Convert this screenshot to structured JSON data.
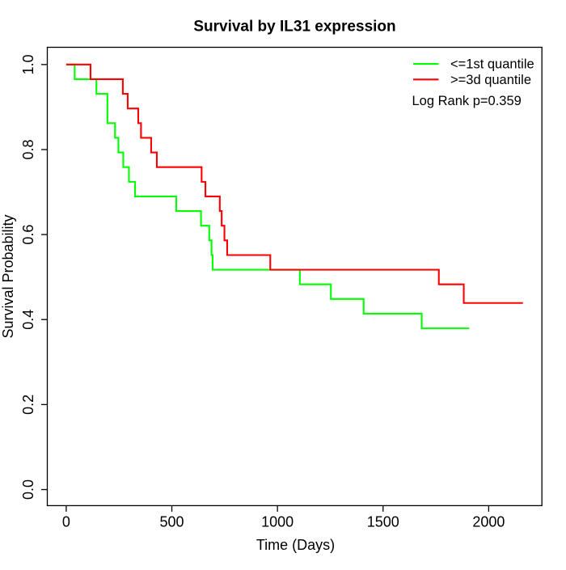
{
  "chart_data": {
    "type": "line",
    "subtype": "kaplan_meier_step",
    "title": "Survival by IL31 expression",
    "xlabel": "Time (Days)",
    "ylabel": "Survival Probability",
    "x_axis": {
      "ticks": [
        0,
        500,
        1000,
        1500,
        2000
      ],
      "tick_labels": [
        "0",
        "500",
        "1000",
        "1500",
        "2000"
      ]
    },
    "y_axis": {
      "ticks": [
        0.0,
        0.2,
        0.4,
        0.6,
        0.8,
        1.0
      ],
      "tick_labels": [
        "0.0",
        "0.2",
        "0.4",
        "0.6",
        "0.8",
        "1.0"
      ],
      "range": [
        0,
        1
      ]
    },
    "grid": false,
    "legend_position": "topright",
    "annotation": "Log Rank p=0.359",
    "colors": {
      "series_low": "#00ff00",
      "series_high": "#ff0000",
      "axis": "#000000",
      "text": "#000000",
      "background": "#ffffff"
    },
    "legend": [
      {
        "label": "<=1st quantile",
        "color": "#00ff00"
      },
      {
        "label": ">=3d quantile",
        "color": "#ff0000"
      }
    ],
    "series": [
      {
        "name": "<=1st quantile",
        "color": "#00ff00",
        "start": [
          0,
          1.0
        ],
        "steps": [
          [
            40,
            0.9655
          ],
          [
            143,
            0.931
          ],
          [
            195,
            0.8621
          ],
          [
            231,
            0.8276
          ],
          [
            247,
            0.7931
          ],
          [
            270,
            0.7586
          ],
          [
            297,
            0.7241
          ],
          [
            326,
            0.6897
          ],
          [
            521,
            0.6552
          ],
          [
            638,
            0.6207
          ],
          [
            677,
            0.5862
          ],
          [
            688,
            0.5517
          ],
          [
            693,
            0.5172
          ],
          [
            1106,
            0.4828
          ],
          [
            1253,
            0.4483
          ],
          [
            1408,
            0.4138
          ],
          [
            1683,
            0.3793
          ]
        ],
        "end_time": 1908
      },
      {
        "name": ">=3d quantile",
        "color": "#ff0000",
        "start": [
          0,
          1.0
        ],
        "steps": [
          [
            115,
            0.9655
          ],
          [
            268,
            0.931
          ],
          [
            291,
            0.8966
          ],
          [
            341,
            0.8621
          ],
          [
            354,
            0.8276
          ],
          [
            402,
            0.7931
          ],
          [
            429,
            0.7586
          ],
          [
            641,
            0.7241
          ],
          [
            659,
            0.6897
          ],
          [
            727,
            0.6552
          ],
          [
            736,
            0.6207
          ],
          [
            749,
            0.5862
          ],
          [
            762,
            0.5517
          ],
          [
            966,
            0.5172
          ],
          [
            1764,
            0.4828
          ],
          [
            1882,
            0.439
          ]
        ],
        "end_time": 2162
      }
    ]
  }
}
